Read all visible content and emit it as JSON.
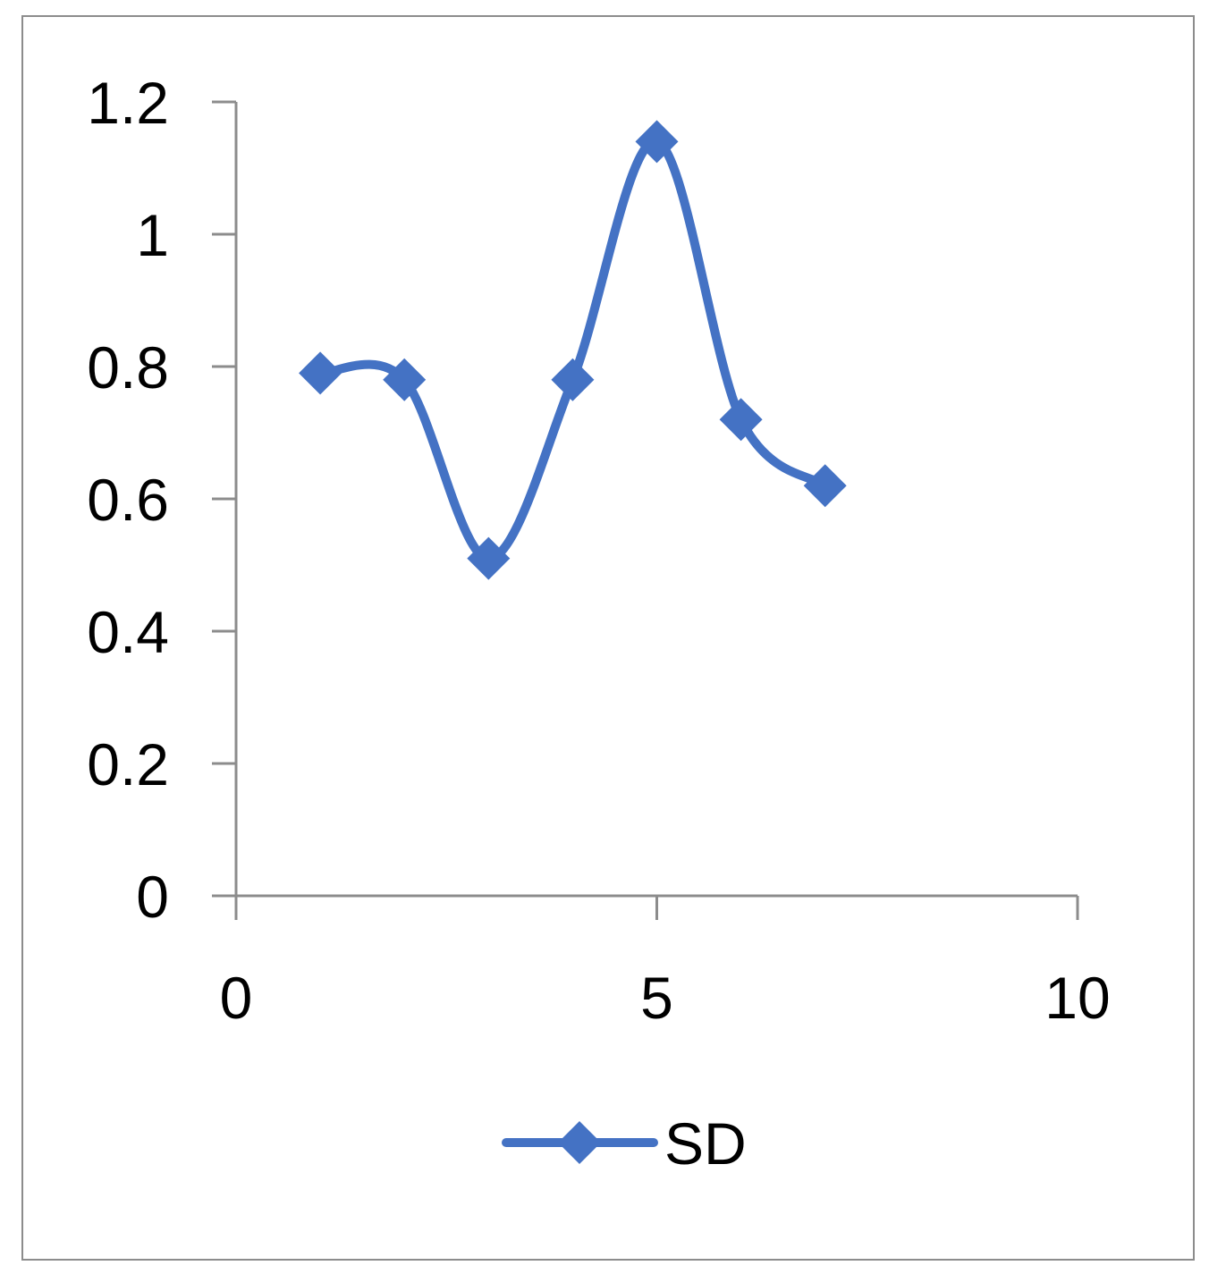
{
  "chart_data": {
    "type": "line",
    "title": "",
    "xlabel": "",
    "ylabel": "",
    "smooth": true,
    "xlim": [
      0,
      10
    ],
    "ylim": [
      0,
      1.2
    ],
    "x_ticks": [
      0,
      5,
      10
    ],
    "x_tick_labels": [
      "0",
      "5",
      "10"
    ],
    "y_ticks": [
      0,
      0.2,
      0.4,
      0.6,
      0.8,
      1,
      1.2
    ],
    "y_tick_labels": [
      "0",
      "0.2",
      "0.4",
      "0.6",
      "0.8",
      "1",
      "1.2"
    ],
    "grid": false,
    "legend_position": "bottom",
    "series": [
      {
        "name": "SD",
        "color": "#4472c4",
        "marker": "diamond",
        "x": [
          1,
          2,
          3,
          4,
          5,
          6,
          7
        ],
        "y": [
          0.79,
          0.78,
          0.51,
          0.78,
          1.14,
          0.72,
          0.62
        ]
      }
    ]
  }
}
